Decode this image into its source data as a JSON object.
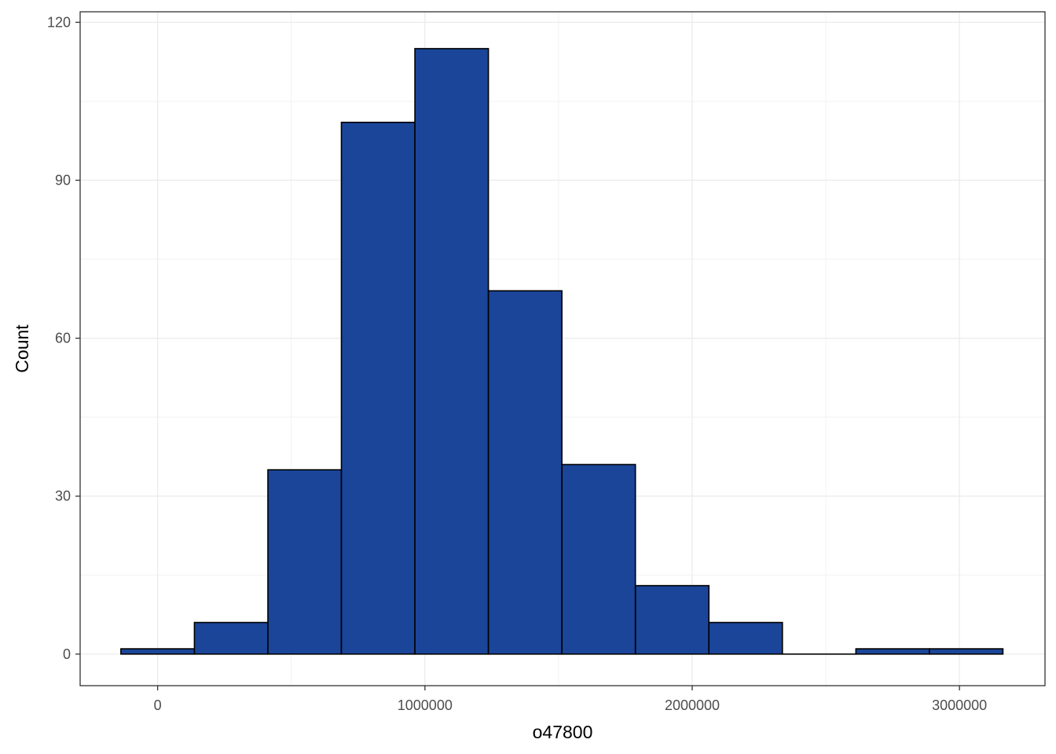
{
  "chart_data": {
    "type": "bar",
    "subtype": "histogram",
    "title": "",
    "xlabel": "o47800",
    "ylabel": "Count",
    "bin_width": 275000,
    "bins": [
      {
        "x0": -137500,
        "x1": 137500,
        "count": 1
      },
      {
        "x0": 137500,
        "x1": 412500,
        "count": 6
      },
      {
        "x0": 412500,
        "x1": 687500,
        "count": 35
      },
      {
        "x0": 687500,
        "x1": 962500,
        "count": 101
      },
      {
        "x0": 962500,
        "x1": 1237500,
        "count": 115
      },
      {
        "x0": 1237500,
        "x1": 1512500,
        "count": 69
      },
      {
        "x0": 1512500,
        "x1": 1787500,
        "count": 36
      },
      {
        "x0": 1787500,
        "x1": 2062500,
        "count": 13
      },
      {
        "x0": 2062500,
        "x1": 2337500,
        "count": 6
      },
      {
        "x0": 2337500,
        "x1": 2612500,
        "count": 0
      },
      {
        "x0": 2612500,
        "x1": 2887500,
        "count": 1
      },
      {
        "x0": 2887500,
        "x1": 3162500,
        "count": 1
      }
    ],
    "xlim": [
      -290000,
      3320000
    ],
    "ylim": [
      -6,
      122
    ],
    "x_ticks": [
      0,
      1000000,
      2000000,
      3000000
    ],
    "x_tick_labels": [
      "0",
      "1000000",
      "2000000",
      "3000000"
    ],
    "y_ticks": [
      0,
      30,
      60,
      90,
      120
    ],
    "y_tick_labels": [
      "0",
      "30",
      "60",
      "90",
      "120"
    ],
    "grid": true,
    "legend": "none",
    "colors": {
      "bar_fill": "#1a4599",
      "bar_stroke": "#000000",
      "grid_major": "#ebebeb",
      "grid_minor": "#f2f2f2",
      "panel_border": "#333333",
      "tick_text": "#4d4d4d",
      "title_text": "#000000"
    }
  }
}
